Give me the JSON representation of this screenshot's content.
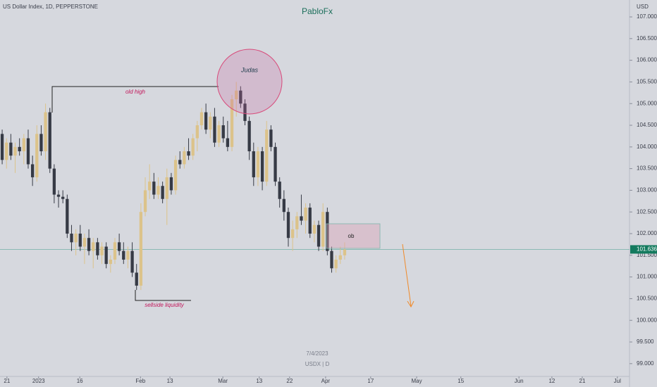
{
  "chart_data": {
    "type": "candlestick",
    "title": "US Dollar Index, 1D, PEPPERSTONE",
    "subtitle": "PabloFx",
    "currency": "USD",
    "watermark_date": "7/4/2023",
    "watermark_symbol": "USDX | D",
    "annotations": {
      "old_high": "old high",
      "judas": "Judas",
      "sellside": "sellside liquidity",
      "ob": "ob"
    },
    "last_price": 101.636,
    "bull_color": "#dcc38a",
    "bear_color": "#363a45",
    "open": [
      104.3,
      103.7,
      104.1,
      103.8,
      104.0,
      103.9,
      104.2,
      103.6,
      103.3,
      104.3,
      103.9,
      104.8,
      103.5,
      102.9,
      102.85,
      102.8,
      102.0,
      101.8,
      102.0,
      101.7,
      101.9,
      101.6,
      101.8,
      101.5,
      101.7,
      101.3,
      101.4,
      101.8,
      101.6,
      101.4,
      101.6,
      101.1,
      100.8,
      102.5,
      103.0,
      103.2,
      102.9,
      103.1,
      102.8,
      103.3,
      103.0,
      103.7,
      103.6,
      103.9,
      103.8,
      104.2,
      104.5,
      104.8,
      104.4,
      104.7,
      104.1,
      104.5,
      104.2,
      104.0,
      105.1,
      105.3,
      105.0,
      104.6,
      103.9,
      103.3,
      103.9,
      103.2,
      104.4,
      104.0,
      103.2,
      102.8,
      102.5,
      101.9,
      102.1,
      102.4,
      102.3,
      102.6,
      102.0,
      102.2,
      101.7,
      102.5,
      101.6,
      101.2,
      101.4,
      101.5
    ],
    "high": [
      104.4,
      104.2,
      104.3,
      104.1,
      104.2,
      104.3,
      104.4,
      103.8,
      104.5,
      104.5,
      105.0,
      104.9,
      103.6,
      103.0,
      103.0,
      102.9,
      102.2,
      102.1,
      102.2,
      102.0,
      102.1,
      101.9,
      101.9,
      101.8,
      101.8,
      101.5,
      101.9,
      102.0,
      101.8,
      101.7,
      101.8,
      101.3,
      102.7,
      103.3,
      103.6,
      103.4,
      103.3,
      103.2,
      103.5,
      103.4,
      103.8,
      103.9,
      104.0,
      104.2,
      104.3,
      104.6,
      104.9,
      105.0,
      104.8,
      104.9,
      104.6,
      104.7,
      104.6,
      105.2,
      105.5,
      105.4,
      105.1,
      104.7,
      104.1,
      104.0,
      104.0,
      104.6,
      104.5,
      104.1,
      103.3,
      103.0,
      102.6,
      102.3,
      102.5,
      102.9,
      102.7,
      102.7,
      102.3,
      102.3,
      102.7,
      102.6,
      101.7,
      101.5,
      101.7,
      101.8
    ],
    "low": [
      103.6,
      103.5,
      103.7,
      103.4,
      103.8,
      103.6,
      103.5,
      103.1,
      103.2,
      103.8,
      103.7,
      103.4,
      102.7,
      102.6,
      102.7,
      101.9,
      101.6,
      101.5,
      101.6,
      101.3,
      101.5,
      101.2,
      101.4,
      101.3,
      101.2,
      101.1,
      101.3,
      101.5,
      101.3,
      101.2,
      101.0,
      100.7,
      100.7,
      102.4,
      102.8,
      102.8,
      102.8,
      102.7,
      102.2,
      102.9,
      102.9,
      103.5,
      103.5,
      103.7,
      103.7,
      103.9,
      104.4,
      104.3,
      104.2,
      104.0,
      104.0,
      104.1,
      103.9,
      103.9,
      104.7,
      104.9,
      104.5,
      103.7,
      103.1,
      103.1,
      103.0,
      103.1,
      103.9,
      103.1,
      102.6,
      102.3,
      101.7,
      101.6,
      101.9,
      102.2,
      102.0,
      101.9,
      101.8,
      101.6,
      101.6,
      101.5,
      101.1,
      101.1,
      101.3,
      101.4
    ],
    "close": [
      103.7,
      104.1,
      103.8,
      104.0,
      103.9,
      104.2,
      103.6,
      103.3,
      104.3,
      103.9,
      104.8,
      103.5,
      102.9,
      102.85,
      102.8,
      102.0,
      101.8,
      102.0,
      101.7,
      101.9,
      101.6,
      101.8,
      101.5,
      101.7,
      101.3,
      101.4,
      101.8,
      101.6,
      101.4,
      101.6,
      101.1,
      100.8,
      102.5,
      103.0,
      103.2,
      102.9,
      103.1,
      102.8,
      103.3,
      103.0,
      103.7,
      103.6,
      103.9,
      103.8,
      104.2,
      104.5,
      104.8,
      104.4,
      104.7,
      104.1,
      104.5,
      104.2,
      104.0,
      105.1,
      105.3,
      105.0,
      104.6,
      103.9,
      103.3,
      103.9,
      103.2,
      104.4,
      104.0,
      103.2,
      102.8,
      102.5,
      101.9,
      102.1,
      102.4,
      102.3,
      102.6,
      102.0,
      102.2,
      101.7,
      102.5,
      101.6,
      101.2,
      101.4,
      101.5,
      101.636
    ],
    "xlim": [
      -0.5,
      144.7
    ],
    "xticks": [
      {
        "value": 1.1,
        "label": "21"
      },
      {
        "value": 8.4,
        "label": "2023"
      },
      {
        "value": 17.9,
        "label": "16"
      },
      {
        "value": 31.9,
        "label": "Feb"
      },
      {
        "value": 38.7,
        "label": "13"
      },
      {
        "value": 50.9,
        "label": "Mar"
      },
      {
        "value": 59.3,
        "label": "13"
      },
      {
        "value": 66.3,
        "label": "22"
      },
      {
        "value": 74.6,
        "label": "Apr"
      },
      {
        "value": 85.0,
        "label": "17"
      },
      {
        "value": 95.6,
        "label": "May"
      },
      {
        "value": 105.8,
        "label": "15"
      },
      {
        "value": 119.2,
        "label": "Jun"
      },
      {
        "value": 126.8,
        "label": "12"
      },
      {
        "value": 133.8,
        "label": "21"
      },
      {
        "value": 141.9,
        "label": "Jul"
      }
    ],
    "ylim": [
      98.705,
      107.39
    ],
    "yticks": [
      {
        "value": 99,
        "label": "99.000"
      },
      {
        "value": 99.5,
        "label": "99.500"
      },
      {
        "value": 100,
        "label": "100.000"
      },
      {
        "value": 100.5,
        "label": "100.500"
      },
      {
        "value": 101,
        "label": "101.000"
      },
      {
        "value": 101.5,
        "label": "101.500"
      },
      {
        "value": 102,
        "label": "102.000"
      },
      {
        "value": 102.5,
        "label": "102.500"
      },
      {
        "value": 103,
        "label": "103.000"
      },
      {
        "value": 103.5,
        "label": "103.500"
      },
      {
        "value": 104,
        "label": "104.000"
      },
      {
        "value": 104.5,
        "label": "104.500"
      },
      {
        "value": 105,
        "label": "105.000"
      },
      {
        "value": 105.5,
        "label": "105.500"
      },
      {
        "value": 106,
        "label": "106.000"
      },
      {
        "value": 106.5,
        "label": "106.500"
      },
      {
        "value": 107,
        "label": "107.000"
      }
    ]
  }
}
